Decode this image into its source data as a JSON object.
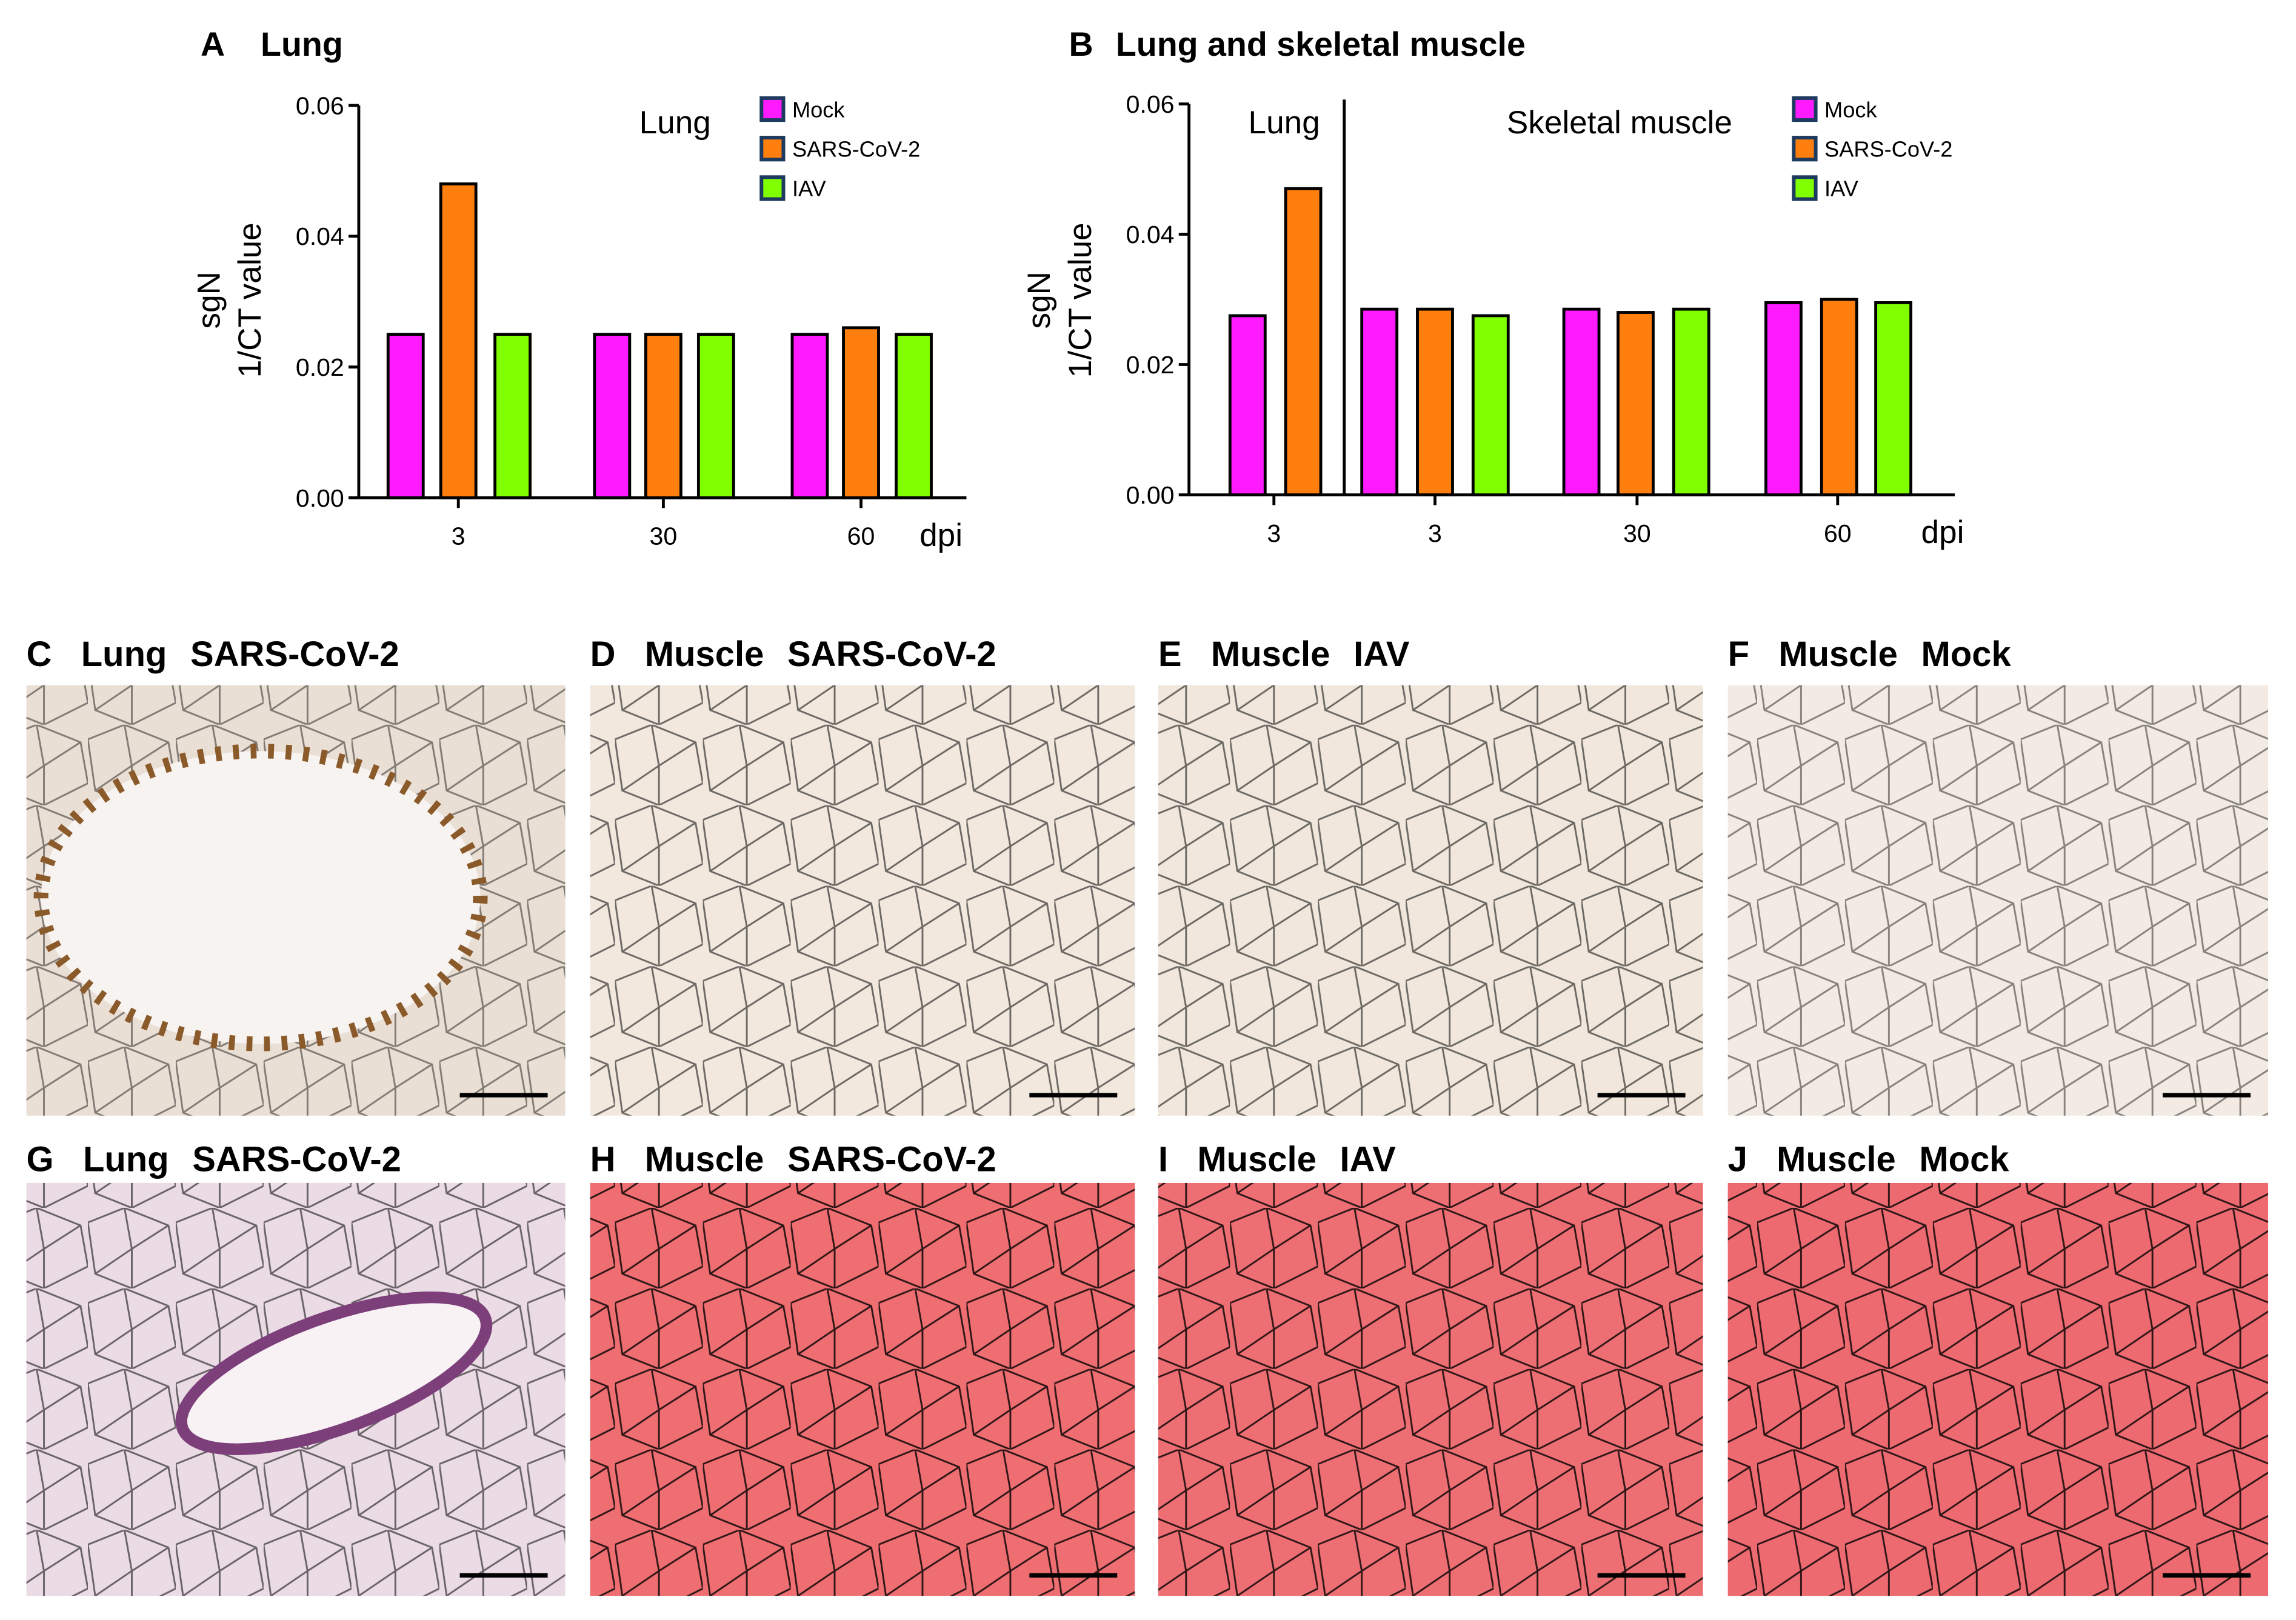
{
  "chart_data": [
    {
      "type": "bar",
      "panel": "A",
      "title": "Lung",
      "y_label": [
        "sgN",
        "1/CT value"
      ],
      "x_label": "dpi",
      "annotations": [
        "Lung"
      ],
      "categories": [
        "3",
        "30",
        "60"
      ],
      "series": [
        {
          "name": "Mock",
          "color": "#ff1aff",
          "values": [
            0.025,
            0.025,
            0.025
          ]
        },
        {
          "name": "SARS-CoV-2",
          "color": "#ff7f0e",
          "values": [
            0.048,
            0.025,
            0.026
          ]
        },
        {
          "name": "IAV",
          "color": "#80ff00",
          "values": [
            0.025,
            0.025,
            0.025
          ]
        }
      ],
      "ylim": [
        0,
        0.06
      ],
      "yticks": [
        {
          "value": 0,
          "label": "0.00"
        },
        0.02,
        0.04,
        0.06
      ],
      "legend": "upper right"
    },
    {
      "type": "bar",
      "panel": "B",
      "title": "Lung and skeletal muscle",
      "y_label": [
        "sgN",
        "1/CT value"
      ],
      "x_label": "dpi",
      "annotations": [
        "Lung",
        "Skeletal muscle"
      ],
      "categories": [
        "3",
        "3",
        "30",
        "60"
      ],
      "series": [
        {
          "name": "Mock",
          "color": "#ff1aff",
          "values": [
            0.0275,
            0.0285,
            0.0285,
            0.0295
          ]
        },
        {
          "name": "SARS-CoV-2",
          "color": "#ff7f0e",
          "values": [
            0.047,
            0.0285,
            0.028,
            0.03
          ]
        },
        {
          "name": "IAV",
          "color": "#80ff00",
          "values": [
            null,
            0.0275,
            0.0285,
            0.0295
          ]
        }
      ],
      "ylim": [
        0,
        0.06
      ],
      "yticks": [
        {
          "value": 0,
          "label": "0.00"
        },
        0.02,
        0.04,
        0.06
      ],
      "legend": "upper right"
    }
  ],
  "panels": [
    {
      "letter": "C",
      "tissue": "Lung",
      "condition": "SARS-CoV-2"
    },
    {
      "letter": "D",
      "tissue": "Muscle",
      "condition": "SARS-CoV-2"
    },
    {
      "letter": "E",
      "tissue": "Muscle",
      "condition": "IAV"
    },
    {
      "letter": "F",
      "tissue": "Muscle",
      "condition": "Mock"
    },
    {
      "letter": "G",
      "tissue": "Lung",
      "condition": "SARS-CoV-2"
    },
    {
      "letter": "H",
      "tissue": "Muscle",
      "condition": "SARS-CoV-2"
    },
    {
      "letter": "I",
      "tissue": "Muscle",
      "condition": "IAV"
    },
    {
      "letter": "J",
      "tissue": "Muscle",
      "condition": "Mock"
    }
  ]
}
